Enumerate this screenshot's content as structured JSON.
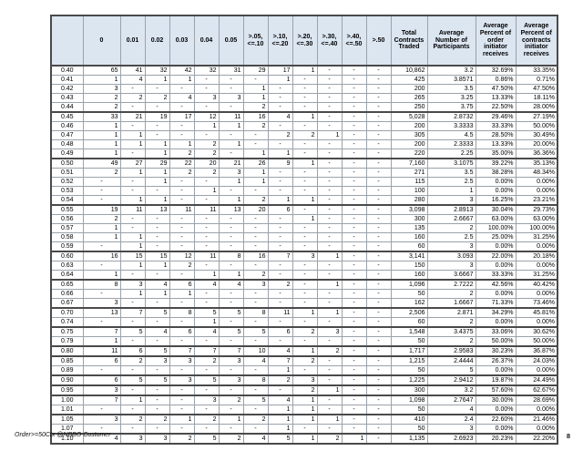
{
  "theme": {
    "header_fill": "#dce6f1",
    "border_thin": "#9aa2aa",
    "border_thick": "#4a4a4a"
  },
  "page": {
    "footer_left": "Order>=50Ctx @NBBO Customer",
    "page_number": "8"
  },
  "table": {
    "corner_label": "",
    "bucket_headers": [
      "0",
      "0.01",
      "0.02",
      "0.03",
      "0.04",
      "0.05",
      ">.05,\n<=.10",
      ">.10,\n<=.20",
      ">.20,\n<=.30",
      ">.30,\n<=.40",
      ">.40,\n<=.50",
      ">.50"
    ],
    "summary_headers": [
      "Total\nContracts\nTraded",
      "Average\nNumber of\nParticipants",
      "Average\nPercent of\norder\ninitiator\nreceives",
      "Average\nPercent of\ncontracts\ninitiator\nreceives"
    ],
    "rows": [
      {
        "label": "0.40",
        "cells": [
          "65",
          "41",
          "32",
          "42",
          "32",
          "31",
          "29",
          "17",
          "1",
          "-",
          "-",
          "-"
        ],
        "total": "10,862",
        "avg_participants": "3.2",
        "avg_pct_order": "32.69%",
        "avg_pct_contracts": "33.35%"
      },
      {
        "label": "0.41",
        "cells": [
          "1",
          "4",
          "1",
          "1",
          "-",
          "-",
          "-",
          "1",
          "-",
          "-",
          "-",
          "-"
        ],
        "total": "425",
        "avg_participants": "3.8571",
        "avg_pct_order": "0.86%",
        "avg_pct_contracts": "0.71%"
      },
      {
        "label": "0.42",
        "cells": [
          "3",
          "-",
          "-",
          "-",
          "-",
          "-",
          "1",
          "-",
          "-",
          "-",
          "-",
          "-"
        ],
        "total": "200",
        "avg_participants": "3.5",
        "avg_pct_order": "47.50%",
        "avg_pct_contracts": "47.50%"
      },
      {
        "label": "0.43",
        "cells": [
          "2",
          "2",
          "2",
          "4",
          "3",
          "3",
          "1",
          "-",
          "-",
          "-",
          "-",
          "-"
        ],
        "total": "265",
        "avg_participants": "3.25",
        "avg_pct_order": "13.33%",
        "avg_pct_contracts": "18.11%"
      },
      {
        "label": "0.44",
        "cells": [
          "2",
          "-",
          "-",
          "-",
          "-",
          "-",
          "2",
          "-",
          "-",
          "-",
          "-",
          "-"
        ],
        "total": "250",
        "avg_participants": "3.75",
        "avg_pct_order": "22.50%",
        "avg_pct_contracts": "28.00%"
      },
      {
        "label": "0.45",
        "cells": [
          "33",
          "21",
          "19",
          "17",
          "12",
          "11",
          "16",
          "4",
          "1",
          "-",
          "-",
          "-"
        ],
        "total": "5,028",
        "avg_participants": "2.8732",
        "avg_pct_order": "29.46%",
        "avg_pct_contracts": "27.19%"
      },
      {
        "label": "0.46",
        "cells": [
          "1",
          "-",
          "-",
          "-",
          "1",
          "1",
          "2",
          "-",
          "-",
          "-",
          "-",
          "-"
        ],
        "total": "200",
        "avg_participants": "3.3333",
        "avg_pct_order": "33.33%",
        "avg_pct_contracts": "50.00%"
      },
      {
        "label": "0.47",
        "cells": [
          "1",
          "1",
          "-",
          "-",
          "-",
          "-",
          "-",
          "2",
          "2",
          "1",
          "-",
          "-"
        ],
        "total": "305",
        "avg_participants": "4.5",
        "avg_pct_order": "28.50%",
        "avg_pct_contracts": "30.49%"
      },
      {
        "label": "0.48",
        "cells": [
          "1",
          "1",
          "1",
          "1",
          "2",
          "1",
          "-",
          "-",
          "-",
          "-",
          "-",
          "-"
        ],
        "total": "200",
        "avg_participants": "2.3333",
        "avg_pct_order": "13.33%",
        "avg_pct_contracts": "20.00%"
      },
      {
        "label": "0.49",
        "cells": [
          "1",
          "-",
          "1",
          "2",
          "2",
          "-",
          "1",
          "1",
          "-",
          "-",
          "-",
          "-"
        ],
        "total": "220",
        "avg_participants": "2.25",
        "avg_pct_order": "35.00%",
        "avg_pct_contracts": "36.36%"
      },
      {
        "label": "0.50",
        "cells": [
          "49",
          "27",
          "29",
          "22",
          "20",
          "21",
          "26",
          "9",
          "1",
          "-",
          "-",
          "-"
        ],
        "total": "7,160",
        "avg_participants": "3.1075",
        "avg_pct_order": "39.22%",
        "avg_pct_contracts": "35.13%"
      },
      {
        "label": "0.51",
        "cells": [
          "2",
          "1",
          "1",
          "2",
          "2",
          "3",
          "1",
          "-",
          "-",
          "-",
          "-",
          "-"
        ],
        "total": "271",
        "avg_participants": "3.5",
        "avg_pct_order": "38.28%",
        "avg_pct_contracts": "48.34%"
      },
      {
        "label": "0.52",
        "cells": [
          "-",
          "-",
          "1",
          "-",
          "-",
          "1",
          "1",
          "-",
          "-",
          "-",
          "-",
          "-"
        ],
        "total": "115",
        "avg_participants": "2.5",
        "avg_pct_order": "0.00%",
        "avg_pct_contracts": "0.00%"
      },
      {
        "label": "0.53",
        "cells": [
          "-",
          "-",
          "-",
          "-",
          "1",
          "-",
          "-",
          "-",
          "-",
          "-",
          "-",
          "-"
        ],
        "total": "100",
        "avg_participants": "1",
        "avg_pct_order": "0.00%",
        "avg_pct_contracts": "0.00%"
      },
      {
        "label": "0.54",
        "cells": [
          "-",
          "1",
          "1",
          "-",
          "-",
          "1",
          "2",
          "1",
          "1",
          "-",
          "-",
          "-"
        ],
        "total": "280",
        "avg_participants": "3",
        "avg_pct_order": "16.25%",
        "avg_pct_contracts": "23.21%"
      },
      {
        "label": "0.55",
        "cells": [
          "19",
          "11",
          "13",
          "11",
          "11",
          "13",
          "20",
          "6",
          "-",
          "-",
          "-",
          "-"
        ],
        "total": "3,098",
        "avg_participants": "2.8913",
        "avg_pct_order": "30.04%",
        "avg_pct_contracts": "29.73%"
      },
      {
        "label": "0.56",
        "cells": [
          "2",
          "-",
          "-",
          "-",
          "-",
          "-",
          "-",
          "-",
          "1",
          "-",
          "-",
          "-"
        ],
        "total": "300",
        "avg_participants": "2.6667",
        "avg_pct_order": "63.00%",
        "avg_pct_contracts": "63.00%"
      },
      {
        "label": "0.57",
        "cells": [
          "1",
          "-",
          "-",
          "-",
          "-",
          "-",
          "-",
          "-",
          "-",
          "-",
          "-",
          "-"
        ],
        "total": "135",
        "avg_participants": "2",
        "avg_pct_order": "100.00%",
        "avg_pct_contracts": "100.00%"
      },
      {
        "label": "0.58",
        "cells": [
          "1",
          "1",
          "-",
          "-",
          "-",
          "-",
          "-",
          "-",
          "-",
          "-",
          "-",
          "-"
        ],
        "total": "160",
        "avg_participants": "2.5",
        "avg_pct_order": "25.00%",
        "avg_pct_contracts": "31.25%"
      },
      {
        "label": "0.59",
        "cells": [
          "-",
          "1",
          "-",
          "-",
          "-",
          "-",
          "-",
          "-",
          "-",
          "-",
          "-",
          "-"
        ],
        "total": "60",
        "avg_participants": "3",
        "avg_pct_order": "0.00%",
        "avg_pct_contracts": "0.00%"
      },
      {
        "label": "0.60",
        "cells": [
          "16",
          "15",
          "15",
          "12",
          "11",
          "8",
          "16",
          "7",
          "3",
          "1",
          "-",
          "-"
        ],
        "total": "3,141",
        "avg_participants": "3.093",
        "avg_pct_order": "22.00%",
        "avg_pct_contracts": "20.18%"
      },
      {
        "label": "0.63",
        "cells": [
          "-",
          "1",
          "1",
          "2",
          "-",
          "-",
          "-",
          "-",
          "-",
          "-",
          "-",
          "-"
        ],
        "total": "150",
        "avg_participants": "3",
        "avg_pct_order": "0.00%",
        "avg_pct_contracts": "0.00%"
      },
      {
        "label": "0.64",
        "cells": [
          "1",
          "-",
          "-",
          "-",
          "1",
          "1",
          "2",
          "-",
          "-",
          "-",
          "-",
          "-"
        ],
        "total": "160",
        "avg_participants": "3.6667",
        "avg_pct_order": "33.33%",
        "avg_pct_contracts": "31.25%"
      },
      {
        "label": "0.65",
        "cells": [
          "8",
          "3",
          "4",
          "6",
          "4",
          "4",
          "3",
          "2",
          "-",
          "1",
          "-",
          "-"
        ],
        "total": "1,096",
        "avg_participants": "2.7222",
        "avg_pct_order": "42.56%",
        "avg_pct_contracts": "40.42%"
      },
      {
        "label": "0.66",
        "cells": [
          "-",
          "1",
          "1",
          "1",
          "-",
          "-",
          "-",
          "-",
          "-",
          "-",
          "-",
          "-"
        ],
        "total": "50",
        "avg_participants": "2",
        "avg_pct_order": "0.00%",
        "avg_pct_contracts": "0.00%"
      },
      {
        "label": "0.67",
        "cells": [
          "3",
          "-",
          "-",
          "-",
          "-",
          "-",
          "-",
          "-",
          "-",
          "-",
          "-",
          "-"
        ],
        "total": "162",
        "avg_participants": "1.6667",
        "avg_pct_order": "71.33%",
        "avg_pct_contracts": "73.46%"
      },
      {
        "label": "0.70",
        "cells": [
          "13",
          "7",
          "5",
          "8",
          "5",
          "5",
          "8",
          "11",
          "1",
          "1",
          "-",
          "-"
        ],
        "total": "2,506",
        "avg_participants": "2.871",
        "avg_pct_order": "34.29%",
        "avg_pct_contracts": "45.81%"
      },
      {
        "label": "0.74",
        "cells": [
          "-",
          "-",
          "-",
          "-",
          "1",
          "-",
          "-",
          "-",
          "-",
          "-",
          "-",
          "-"
        ],
        "total": "60",
        "avg_participants": "2",
        "avg_pct_order": "0.00%",
        "avg_pct_contracts": "0.00%"
      },
      {
        "label": "0.75",
        "cells": [
          "7",
          "5",
          "4",
          "6",
          "4",
          "5",
          "5",
          "6",
          "2",
          "3",
          "-",
          "-"
        ],
        "total": "1,548",
        "avg_participants": "3.4375",
        "avg_pct_order": "33.06%",
        "avg_pct_contracts": "30.62%"
      },
      {
        "label": "0.79",
        "cells": [
          "1",
          "-",
          "-",
          "-",
          "-",
          "-",
          "-",
          "-",
          "-",
          "-",
          "-",
          "-"
        ],
        "total": "50",
        "avg_participants": "2",
        "avg_pct_order": "50.00%",
        "avg_pct_contracts": "50.00%"
      },
      {
        "label": "0.80",
        "cells": [
          "11",
          "6",
          "5",
          "7",
          "7",
          "7",
          "10",
          "4",
          "1",
          "2",
          "-",
          "-"
        ],
        "total": "1,717",
        "avg_participants": "2.9583",
        "avg_pct_order": "30.23%",
        "avg_pct_contracts": "36.87%"
      },
      {
        "label": "0.85",
        "cells": [
          "6",
          "2",
          "3",
          "3",
          "2",
          "3",
          "4",
          "7",
          "2",
          "-",
          "-",
          "-"
        ],
        "total": "1,215",
        "avg_participants": "2.4444",
        "avg_pct_order": "26.37%",
        "avg_pct_contracts": "24.03%"
      },
      {
        "label": "0.89",
        "cells": [
          "-",
          "-",
          "-",
          "-",
          "-",
          "-",
          "-",
          "1",
          "-",
          "-",
          "-",
          "-"
        ],
        "total": "50",
        "avg_participants": "5",
        "avg_pct_order": "0.00%",
        "avg_pct_contracts": "0.00%"
      },
      {
        "label": "0.90",
        "cells": [
          "6",
          "5",
          "5",
          "3",
          "5",
          "3",
          "8",
          "2",
          "3",
          "-",
          "-",
          "-"
        ],
        "total": "1,225",
        "avg_participants": "2.9412",
        "avg_pct_order": "19.87%",
        "avg_pct_contracts": "24.49%"
      },
      {
        "label": "0.95",
        "cells": [
          "3",
          "-",
          "-",
          "-",
          "-",
          "-",
          "-",
          "-",
          "2",
          "1",
          "-",
          "-"
        ],
        "total": "300",
        "avg_participants": "3.2",
        "avg_pct_order": "57.60%",
        "avg_pct_contracts": "62.67%"
      },
      {
        "label": "1.00",
        "cells": [
          "7",
          "1",
          "-",
          "-",
          "3",
          "2",
          "5",
          "4",
          "1",
          "-",
          "-",
          "-"
        ],
        "total": "1,098",
        "avg_participants": "2.7647",
        "avg_pct_order": "30.00%",
        "avg_pct_contracts": "28.69%"
      },
      {
        "label": "1.01",
        "cells": [
          "-",
          "-",
          "-",
          "-",
          "-",
          "-",
          "-",
          "1",
          "1",
          "-",
          "-",
          "-"
        ],
        "total": "50",
        "avg_participants": "4",
        "avg_pct_order": "0.00%",
        "avg_pct_contracts": "0.00%"
      },
      {
        "label": "1.05",
        "cells": [
          "3",
          "2",
          "2",
          "1",
          "2",
          "1",
          "2",
          "1",
          "1",
          "1",
          "-",
          "-"
        ],
        "total": "410",
        "avg_participants": "2.4",
        "avg_pct_order": "22.60%",
        "avg_pct_contracts": "21.46%"
      },
      {
        "label": "1.07",
        "cells": [
          "-",
          "-",
          "-",
          "-",
          "-",
          "-",
          "-",
          "1",
          "-",
          "-",
          "-",
          "-"
        ],
        "total": "50",
        "avg_participants": "3",
        "avg_pct_order": "0.00%",
        "avg_pct_contracts": "0.00%"
      },
      {
        "label": "1.10",
        "cells": [
          "4",
          "3",
          "3",
          "2",
          "5",
          "2",
          "4",
          "5",
          "1",
          "2",
          "1",
          "-"
        ],
        "total": "1,135",
        "avg_participants": "2.6923",
        "avg_pct_order": "20.23%",
        "avg_pct_contracts": "22.20%"
      }
    ]
  }
}
